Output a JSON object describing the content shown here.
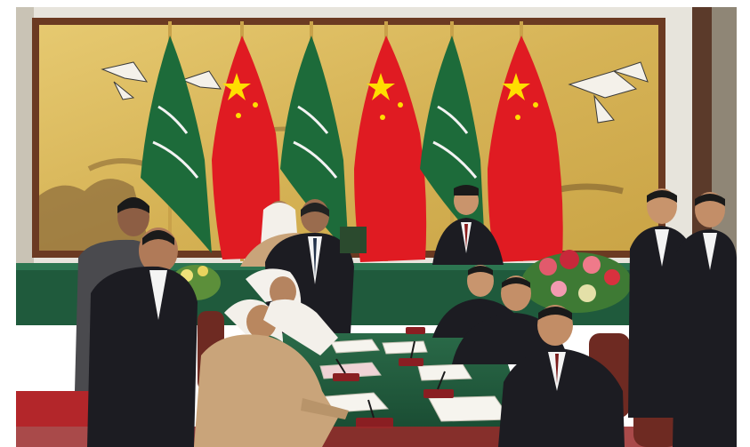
{
  "scene": {
    "colors": {
      "screen_gold": "#d8b65a",
      "wall": "#e9e6de",
      "saudi_green": "#1d6b3a",
      "china_red": "#e01b22",
      "china_yellow": "#ffde00",
      "table_green": "#1f5a3c",
      "carpet_red": "#b3262a",
      "suit_dark": "#1c1c22",
      "thobe_white": "#f3f0ea",
      "bisht_tan": "#c9a47a"
    },
    "flag_order": [
      "saudi-flag",
      "china-flag",
      "saudi-flag",
      "china-flag",
      "saudi-flag",
      "china-flag"
    ],
    "icons": [
      "cranes-icon",
      "flower-arrangement-icon",
      "chair-icon",
      "pen-icon",
      "document-icon"
    ]
  }
}
